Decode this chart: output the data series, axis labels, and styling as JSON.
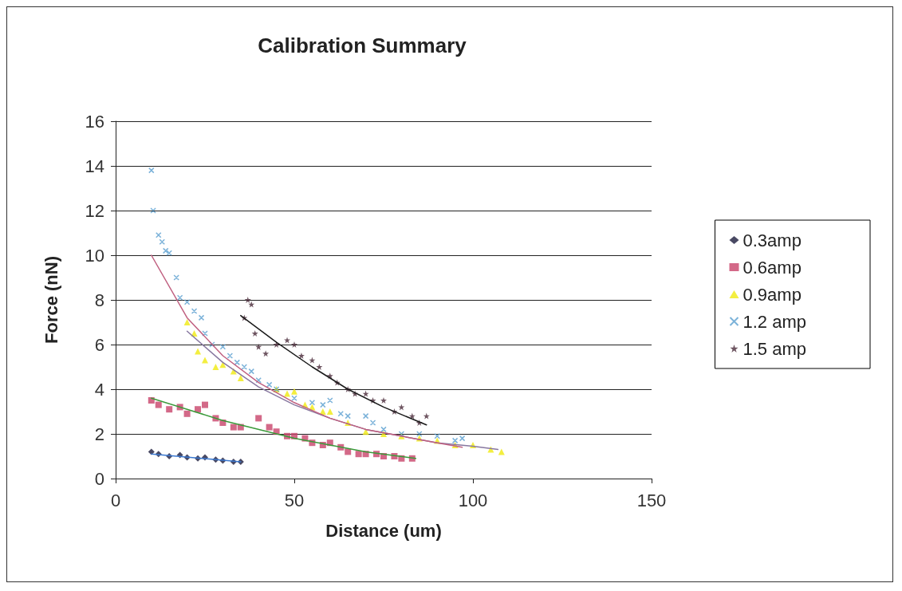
{
  "chart_data": {
    "type": "scatter",
    "title": "Calibration Summary",
    "xlabel": "Distance (um)",
    "ylabel": "Force (nN)",
    "xlim": [
      0,
      150
    ],
    "xticks": [
      0,
      50,
      100,
      150
    ],
    "ylim": [
      0,
      16
    ],
    "yticks": [
      0,
      2,
      4,
      6,
      8,
      10,
      12,
      14,
      16
    ],
    "grid": "y",
    "legend": "right",
    "series": [
      {
        "name": "0.3amp",
        "color": "#1c1c3c",
        "marker": "diamond",
        "x": [
          10,
          12,
          15,
          18,
          20,
          23,
          25,
          28,
          30,
          33,
          35
        ],
        "values": [
          1.2,
          1.1,
          1.0,
          1.05,
          0.95,
          0.9,
          0.95,
          0.85,
          0.8,
          0.75,
          0.75
        ]
      },
      {
        "name": "0.6amp",
        "color": "#c8446a",
        "marker": "square",
        "x": [
          10,
          12,
          15,
          18,
          20,
          23,
          25,
          28,
          30,
          33,
          35,
          40,
          43,
          45,
          48,
          50,
          53,
          55,
          58,
          60,
          63,
          65,
          68,
          70,
          73,
          75,
          78,
          80,
          83
        ],
        "values": [
          3.5,
          3.3,
          3.1,
          3.2,
          2.9,
          3.1,
          3.3,
          2.7,
          2.5,
          2.3,
          2.3,
          2.7,
          2.3,
          2.1,
          1.9,
          1.9,
          1.8,
          1.6,
          1.5,
          1.6,
          1.4,
          1.2,
          1.1,
          1.1,
          1.1,
          1.0,
          1.0,
          0.9,
          0.9
        ]
      },
      {
        "name": "0.9amp",
        "color": "#f0ea10",
        "marker": "triangle",
        "x": [
          20,
          22,
          23,
          25,
          28,
          30,
          33,
          35,
          45,
          48,
          50,
          53,
          55,
          58,
          60,
          65,
          70,
          75,
          80,
          85,
          90,
          95,
          100,
          105,
          108
        ],
        "values": [
          7.0,
          6.5,
          5.7,
          5.3,
          5.0,
          5.1,
          4.8,
          4.5,
          4.0,
          3.8,
          3.9,
          3.3,
          3.2,
          3.0,
          3.0,
          2.5,
          2.1,
          2.0,
          1.9,
          1.8,
          1.7,
          1.5,
          1.5,
          1.3,
          1.2
        ]
      },
      {
        "name": "1.2 amp",
        "color": "#5a9fd0",
        "marker": "cross",
        "x": [
          10,
          10.5,
          12,
          13,
          14,
          15,
          17,
          18,
          20,
          22,
          24,
          25,
          27,
          30,
          32,
          34,
          36,
          38,
          40,
          43,
          45,
          50,
          55,
          58,
          60,
          63,
          65,
          70,
          72,
          75,
          80,
          85,
          90,
          95,
          97
        ],
        "values": [
          13.8,
          12.0,
          10.9,
          10.6,
          10.2,
          10.1,
          9.0,
          8.1,
          7.9,
          7.5,
          7.2,
          6.5,
          6.0,
          5.9,
          5.5,
          5.2,
          5.0,
          4.8,
          4.4,
          4.2,
          4.0,
          3.6,
          3.4,
          3.3,
          3.5,
          2.9,
          2.8,
          2.8,
          2.5,
          2.2,
          2.0,
          2.0,
          1.9,
          1.7,
          1.8
        ]
      },
      {
        "name": "1.5 amp",
        "color": "#4a2a3a",
        "marker": "star",
        "x": [
          36,
          37,
          38,
          39,
          40,
          42,
          45,
          48,
          50,
          52,
          55,
          57,
          60,
          62,
          65,
          67,
          70,
          72,
          75,
          78,
          80,
          83,
          85,
          87
        ],
        "values": [
          7.2,
          8.0,
          7.8,
          6.5,
          5.9,
          5.6,
          6.0,
          6.2,
          6.0,
          5.5,
          5.3,
          5.0,
          4.6,
          4.3,
          4.0,
          3.8,
          3.8,
          3.5,
          3.5,
          3.0,
          3.2,
          2.8,
          2.5,
          2.8
        ]
      },
      {
        "type": "line",
        "color": "#3a78d0",
        "marker": "none",
        "x": [
          10,
          35
        ],
        "values": [
          1.1,
          0.75
        ]
      },
      {
        "type": "line",
        "color": "#3a9a3a",
        "marker": "none",
        "x": [
          10,
          30,
          50,
          70,
          84
        ],
        "values": [
          3.6,
          2.6,
          1.8,
          1.2,
          0.9
        ]
      },
      {
        "type": "line",
        "color": "#8878a0",
        "marker": "none",
        "x": [
          20,
          30,
          40,
          50,
          60,
          70,
          80,
          90,
          100,
          107
        ],
        "values": [
          6.6,
          5.2,
          4.1,
          3.3,
          2.7,
          2.2,
          1.9,
          1.6,
          1.45,
          1.3
        ]
      },
      {
        "type": "line",
        "color": "#c06080",
        "marker": "none",
        "x": [
          10,
          20,
          30,
          40,
          50,
          60,
          70,
          80,
          90,
          97
        ],
        "values": [
          10,
          7.2,
          5.5,
          4.3,
          3.4,
          2.7,
          2.2,
          1.9,
          1.6,
          1.4
        ]
      },
      {
        "type": "line",
        "color": "#1a1a1a",
        "marker": "none",
        "x": [
          35,
          45,
          55,
          65,
          75,
          87
        ],
        "values": [
          7.3,
          6.1,
          5.0,
          4.0,
          3.2,
          2.4
        ]
      }
    ]
  }
}
